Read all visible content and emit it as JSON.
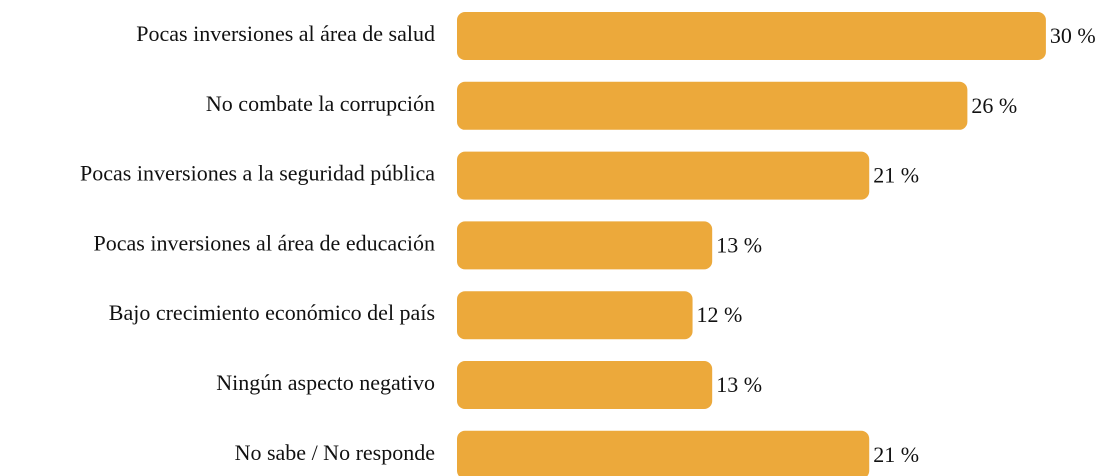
{
  "chart_data": {
    "type": "bar",
    "orientation": "horizontal",
    "categories": [
      "Pocas inversiones al área de salud",
      "No combate la corrupción",
      "Pocas inversiones a la seguridad pública",
      "Pocas inversiones al área de educación",
      "Bajo crecimiento económico del país",
      "Ningún aspecto negativo",
      "No sabe / No responde"
    ],
    "values": [
      30,
      26,
      21,
      13,
      12,
      13,
      21
    ],
    "value_labels": [
      "30 %",
      "26 %",
      "21 %",
      "13 %",
      "12 %",
      "13 %",
      "21 %"
    ],
    "color": "#eca93b"
  }
}
